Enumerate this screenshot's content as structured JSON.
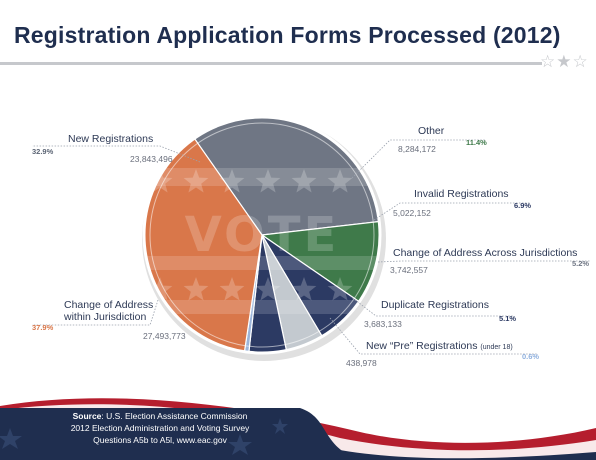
{
  "title": "Registration Application Forms Processed (2012)",
  "decoration": {
    "title_stars": "☆★☆",
    "pie_word": "VOTE"
  },
  "colors": {
    "navy": "#1f2e4f",
    "gray": "#6f7684",
    "orange": "#d9774a",
    "green": "#3f7a4a",
    "darknavy": "#2c3a63",
    "lightgray": "#c3c9cf",
    "lightblue": "#9cb5da"
  },
  "chart_data": {
    "type": "pie",
    "slices": [
      {
        "label": "New Registrations",
        "value": 23843496,
        "value_label": "23,843,496",
        "percent": 32.9,
        "percent_label": "32.9%",
        "color": "#6f7684",
        "pct_color": "#5b6474"
      },
      {
        "label": "Other",
        "value": 8284172,
        "value_label": "8,284,172",
        "percent": 11.4,
        "percent_label": "11.4%",
        "color": "#3f7a4a",
        "pct_color": "#3f7a4a"
      },
      {
        "label": "Invalid Registrations",
        "value": 5022152,
        "value_label": "5,022,152",
        "percent": 6.9,
        "percent_label": "6.9%",
        "color": "#2c3a63",
        "pct_color": "#2c3a63"
      },
      {
        "label": "Change of Address Across Jurisdictions",
        "value": 3742557,
        "value_label": "3,742,557",
        "percent": 5.2,
        "percent_label": "5.2%",
        "color": "#c3c9cf",
        "pct_color": "#6f7684"
      },
      {
        "label": "Duplicate Registrations",
        "value": 3683133,
        "value_label": "3,683,133",
        "percent": 5.1,
        "percent_label": "5.1%",
        "color": "#2c3a63",
        "pct_color": "#2c3a63"
      },
      {
        "label": "New “Pre” Registrations",
        "label_note": "(under 18)",
        "value": 438978,
        "value_label": "438,978",
        "percent": 0.6,
        "percent_label": "0.6%",
        "color": "#9cb5da",
        "pct_color": "#8fb0de"
      },
      {
        "label": "Change of Address within Jurisdiction",
        "label_lines": [
          "Change of Address",
          "within Jurisdiction"
        ],
        "value": 27493773,
        "value_label": "27,493,773",
        "percent": 37.9,
        "percent_label": "37.9%",
        "color": "#d9774a",
        "pct_color": "#d9774a"
      }
    ]
  },
  "source": {
    "label": "Source",
    "line1": ": U.S. Election Assistance Commission",
    "line2": "2012 Election Administration and Voting Survey",
    "line3": "Questions A5b to A5l, www.eac.gov"
  }
}
